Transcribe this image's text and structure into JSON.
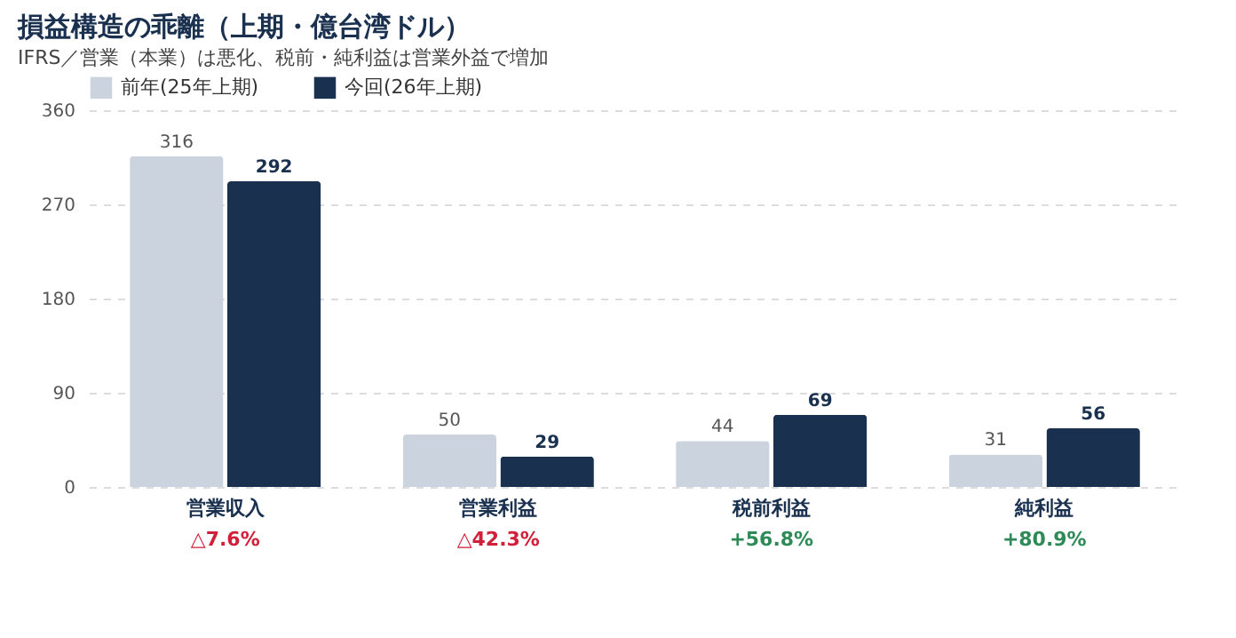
{
  "chart_data": {
    "type": "bar",
    "title": "損益構造の乖離（上期・億台湾ドル）",
    "subtitle": "IFRS／営業（本業）は悪化、税前・純利益は営業外益で増加",
    "categories": [
      "営業収入",
      "営業利益",
      "税前利益",
      "純利益"
    ],
    "series": [
      {
        "name": "前年(25年上期)",
        "color": "#cbd3df",
        "values": [
          316,
          50,
          44,
          31
        ]
      },
      {
        "name": "今回(26年上期)",
        "color": "#1a304f",
        "values": [
          292,
          29,
          69,
          56
        ]
      }
    ],
    "annotations": [
      "△7.6%",
      "△42.3%",
      "+56.8%",
      "+80.9%"
    ],
    "ylim": [
      0,
      360
    ],
    "yticks": [
      0,
      90,
      180,
      270,
      360
    ],
    "grid": "y",
    "legend": "top left",
    "data_labels": true
  }
}
